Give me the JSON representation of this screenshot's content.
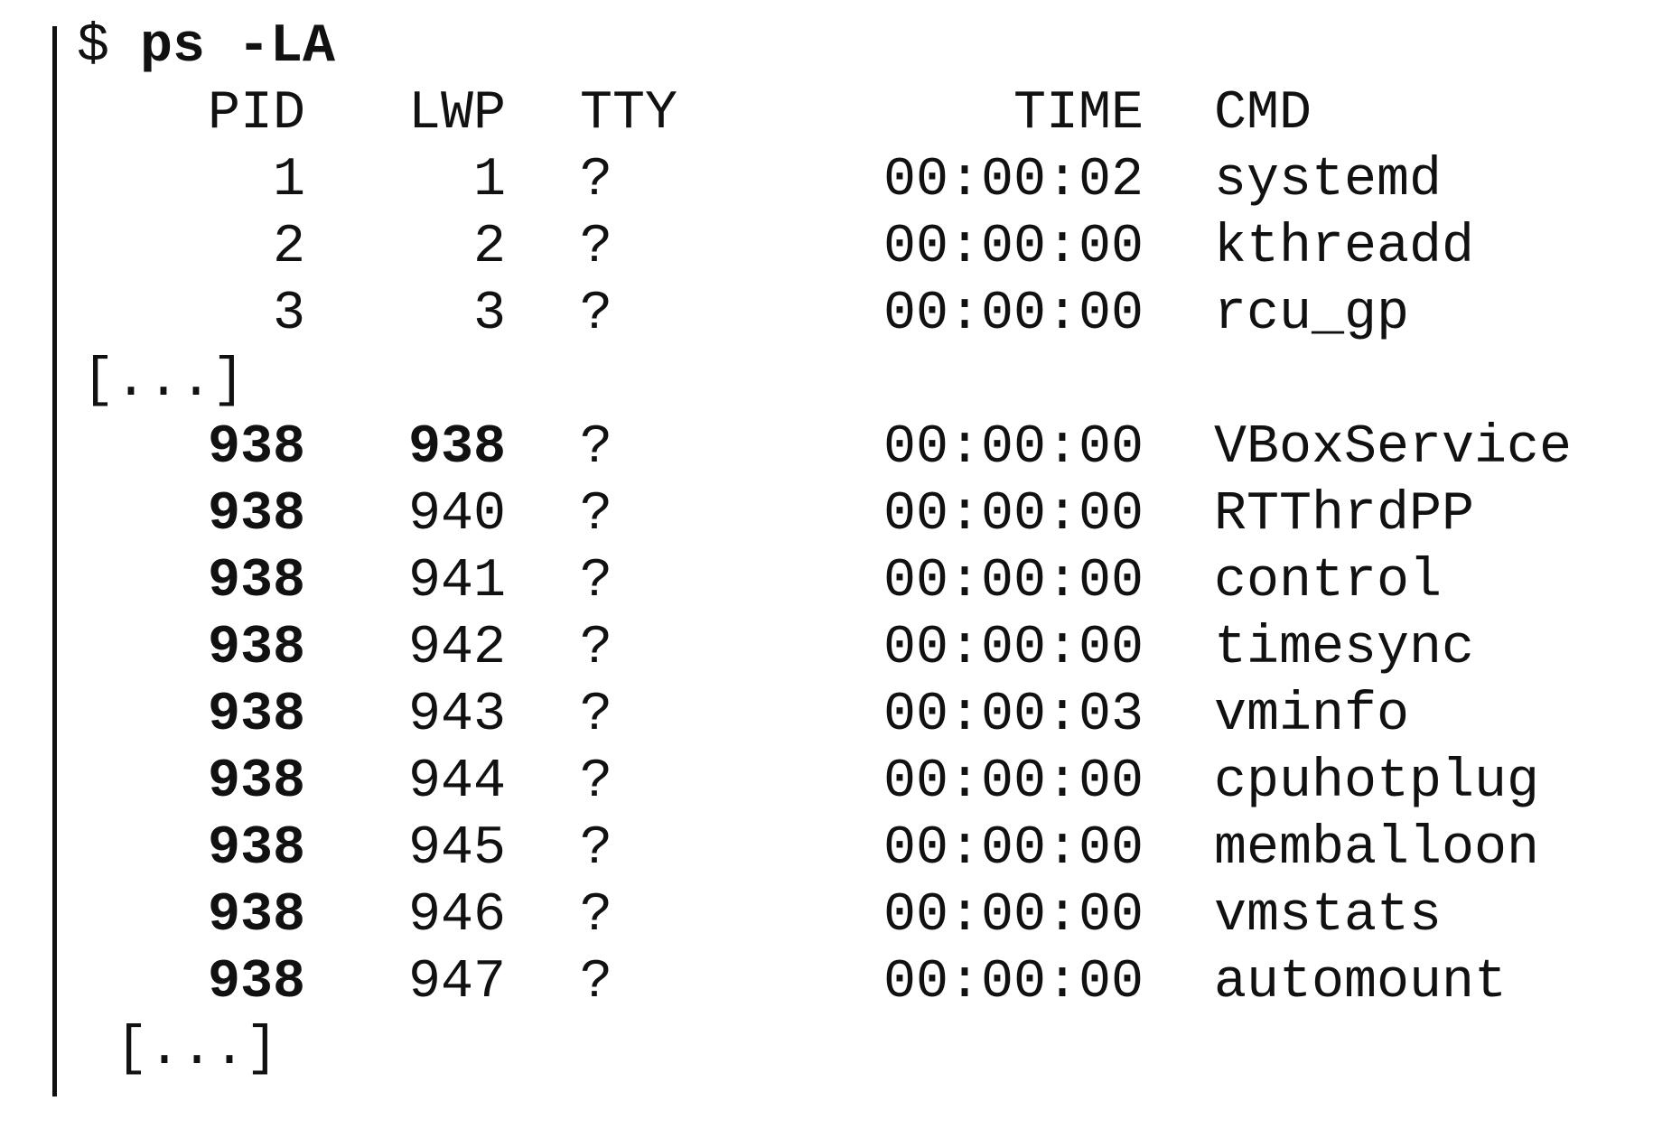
{
  "prompt": "$",
  "command": "ps -LA",
  "header": [
    "PID",
    "LWP",
    "TTY",
    "TIME",
    "CMD"
  ],
  "rows_before": [
    [
      "1",
      "1",
      "?",
      "00:00:02",
      "systemd"
    ],
    [
      "2",
      "2",
      "?",
      "00:00:00",
      "kthreadd"
    ],
    [
      "3",
      "3",
      "?",
      "00:00:00",
      "rcu_gp"
    ]
  ],
  "ellipsis_1": "[...]",
  "rows_after": [
    [
      "938",
      "938",
      "?",
      "00:00:00",
      "VBoxService"
    ],
    [
      "938",
      "940",
      "?",
      "00:00:00",
      "RTThrdPP"
    ],
    [
      "938",
      "941",
      "?",
      "00:00:00",
      "control"
    ],
    [
      "938",
      "942",
      "?",
      "00:00:00",
      "timesync"
    ],
    [
      "938",
      "943",
      "?",
      "00:00:03",
      "vminfo"
    ],
    [
      "938",
      "944",
      "?",
      "00:00:00",
      "cpuhotplug"
    ],
    [
      "938",
      "945",
      "?",
      "00:00:00",
      "memballoon"
    ],
    [
      "938",
      "946",
      "?",
      "00:00:00",
      "vmstats"
    ],
    [
      "938",
      "947",
      "?",
      "00:00:00",
      "automount"
    ]
  ],
  "ellipsis_2": "[...]"
}
